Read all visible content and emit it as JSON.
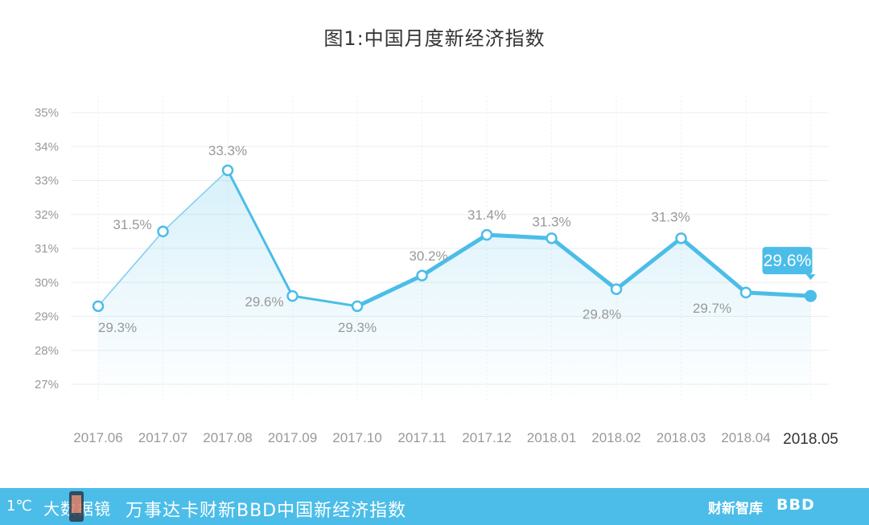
{
  "chart_data": {
    "type": "line",
    "title": "图1:中国月度新经济指数",
    "categories": [
      "2017.06",
      "2017.07",
      "2017.08",
      "2017.09",
      "2017.10",
      "2017.11",
      "2017.12",
      "2018.01",
      "2018.02",
      "2018.03",
      "2018.04",
      "2018.05"
    ],
    "values": [
      29.3,
      31.5,
      33.3,
      29.6,
      29.3,
      30.2,
      31.4,
      31.3,
      29.8,
      31.3,
      29.7,
      29.6
    ],
    "data_labels": [
      "29.3%",
      "31.5%",
      "33.3%",
      "29.6%",
      "29.3%",
      "30.2%",
      "31.4%",
      "31.3%",
      "29.8%",
      "31.3%",
      "29.7%",
      "29.6%"
    ],
    "y_ticks": [
      "27%",
      "28%",
      "29%",
      "30%",
      "31%",
      "32%",
      "33%",
      "34%",
      "35%"
    ],
    "ylim": [
      26.9,
      35
    ],
    "grid": true,
    "highlighted_last_point": true,
    "colors": {
      "line": "#4bbde8",
      "line_thin": "#7fcdee",
      "highlight_fill": "#4bbde8",
      "label": "#999999",
      "axis_label": "#999999",
      "last_label": "#333333",
      "grid": "#eeeeee"
    }
  },
  "footer": {
    "logo_mark": "1℃",
    "brand": "大数据镜",
    "caption": "万事达卡财新BBD中国新经济指数",
    "logo_caixin": "财新智库",
    "logo_bbd": "BBD"
  }
}
